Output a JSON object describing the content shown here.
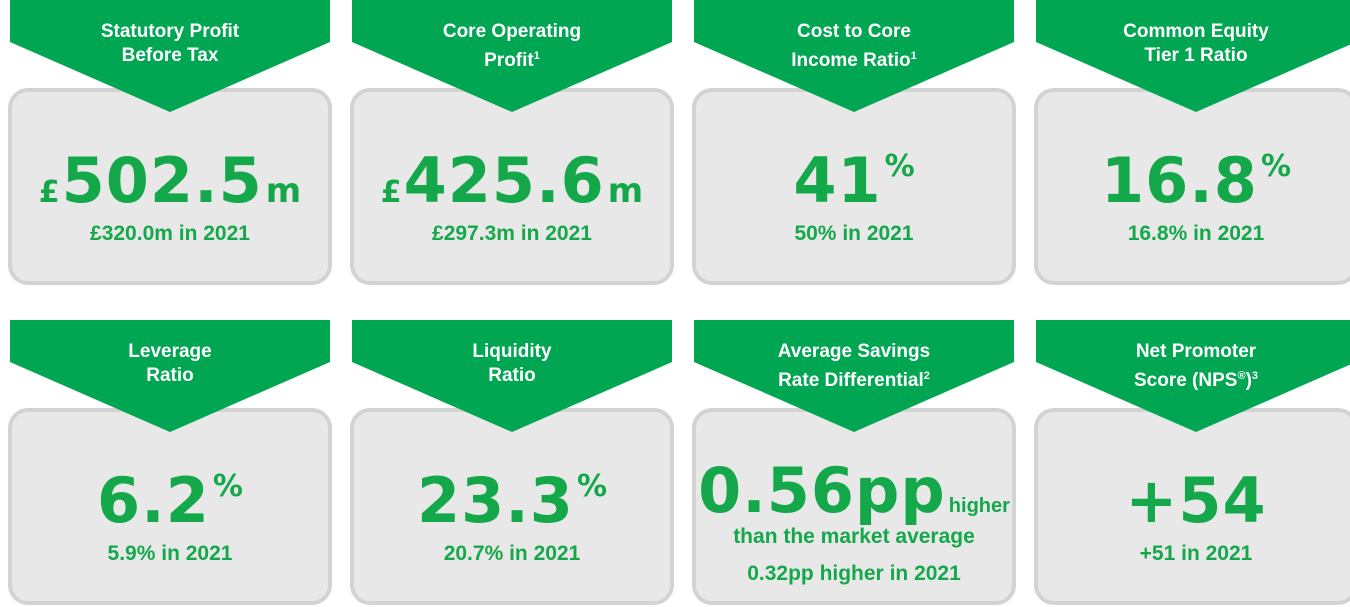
{
  "cards": [
    {
      "title": [
        [
          {
            "text": "Statutory Profit"
          }
        ],
        [
          {
            "text": "Before Tax"
          }
        ]
      ],
      "value": {
        "prefix": "£",
        "number": "502.5",
        "suffix": "m",
        "suffix_sup": false
      },
      "comparison": "£320.0m in 2021"
    },
    {
      "title": [
        [
          {
            "text": "Core Operating"
          }
        ],
        [
          {
            "text": "Profit"
          },
          {
            "text": "1",
            "sup": true
          }
        ]
      ],
      "value": {
        "prefix": "£",
        "number": "425.6",
        "suffix": "m",
        "suffix_sup": false
      },
      "comparison": "£297.3m in 2021"
    },
    {
      "title": [
        [
          {
            "text": "Cost to Core"
          }
        ],
        [
          {
            "text": "Income Ratio"
          },
          {
            "text": "1",
            "sup": true
          }
        ]
      ],
      "value": {
        "number": "41",
        "suffix": "%",
        "suffix_sup": true
      },
      "comparison": "50% in 2021"
    },
    {
      "title": [
        [
          {
            "text": "Common Equity"
          }
        ],
        [
          {
            "text": "Tier 1 Ratio"
          }
        ]
      ],
      "value": {
        "number": "16.8",
        "suffix": "%",
        "suffix_sup": true
      },
      "comparison": "16.8% in 2021"
    },
    {
      "title": [
        [
          {
            "text": "Leverage"
          }
        ],
        [
          {
            "text": "Ratio"
          }
        ]
      ],
      "value": {
        "number": "6.2",
        "suffix": "%",
        "suffix_sup": true
      },
      "comparison": "5.9% in 2021"
    },
    {
      "title": [
        [
          {
            "text": "Liquidity"
          }
        ],
        [
          {
            "text": "Ratio"
          }
        ]
      ],
      "value": {
        "number": "23.3",
        "suffix": "%",
        "suffix_sup": true
      },
      "comparison": "20.7% in 2021"
    },
    {
      "title": [
        [
          {
            "text": "Average Savings"
          }
        ],
        [
          {
            "text": "Rate Differential"
          },
          {
            "text": "2",
            "sup": true
          }
        ]
      ],
      "value": {
        "number": "0.56pp",
        "suffix": "higher",
        "suffix_sup": false,
        "note": "than the market average"
      },
      "comparison": "0.32pp higher in 2021"
    },
    {
      "title": [
        [
          {
            "text": "Net Promoter"
          }
        ],
        [
          {
            "text": "Score (NPS"
          },
          {
            "text": "®",
            "sup": true
          },
          {
            "text": ")"
          },
          {
            "text": "3",
            "sup": true
          }
        ]
      ],
      "value": {
        "number": "+54"
      },
      "comparison": "+51 in 2021"
    }
  ]
}
